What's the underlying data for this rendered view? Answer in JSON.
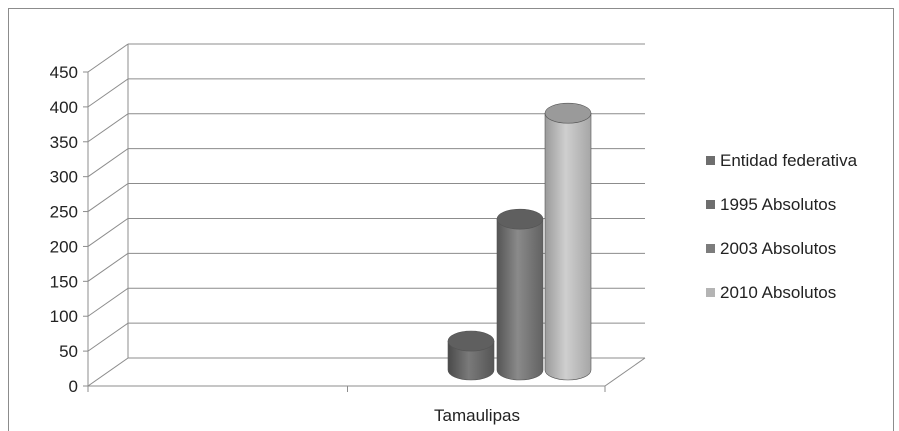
{
  "chart_data": {
    "type": "bar",
    "style": "3d-cylinder",
    "title": "",
    "xlabel": "",
    "ylabel": "",
    "categories": [
      "Tamaulipas"
    ],
    "ylim": [
      0,
      450
    ],
    "yticks": [
      0,
      50,
      100,
      150,
      200,
      250,
      300,
      350,
      400,
      450
    ],
    "grid": true,
    "legend_position": "right",
    "series": [
      {
        "name": "Entidad federativa",
        "values": [
          null
        ],
        "color": "#6e6e6e"
      },
      {
        "name": "1995 Absolutos",
        "values": [
          45
        ],
        "color": "#6e6e6e"
      },
      {
        "name": "2003 Absolutos",
        "values": [
          235
        ],
        "color": "#7c7c7c"
      },
      {
        "name": "2010 Absolutos",
        "values": [
          400
        ],
        "color": "#b4b4b4"
      }
    ]
  }
}
